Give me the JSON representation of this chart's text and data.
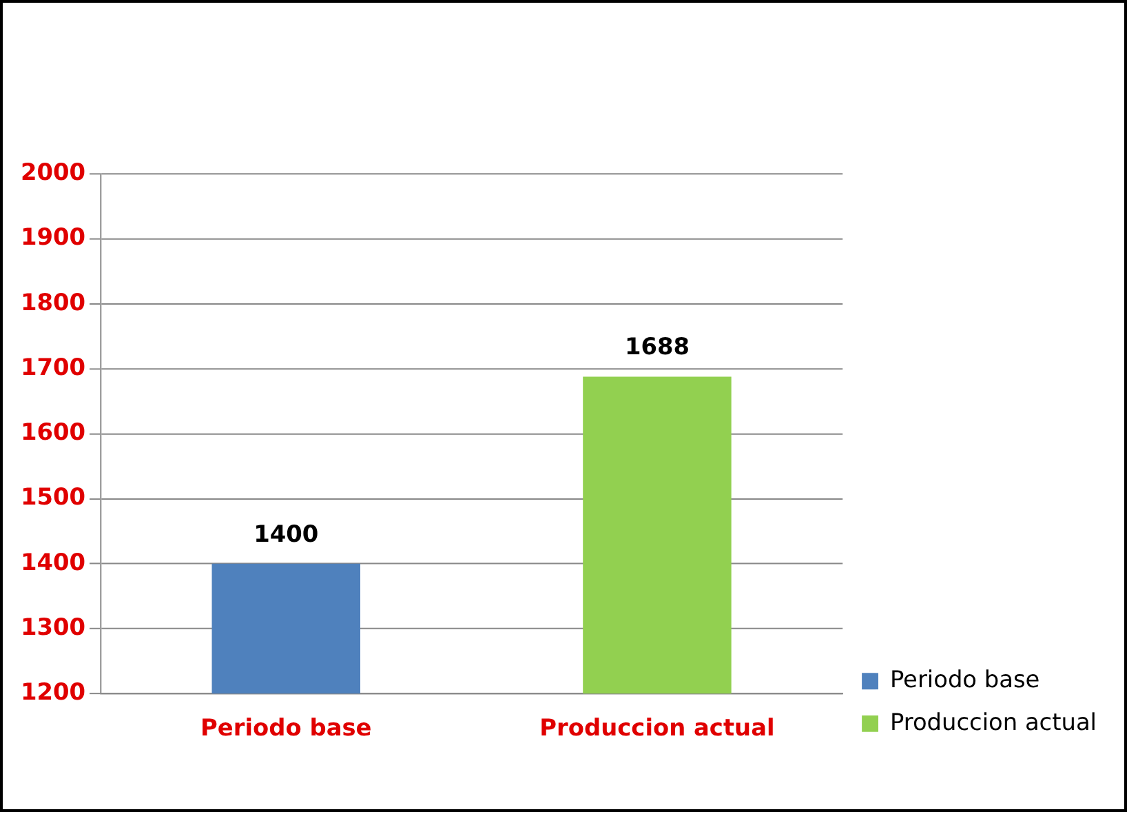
{
  "chart_data": {
    "type": "bar",
    "categories": [
      "Periodo base",
      "Produccion actual"
    ],
    "series": [
      {
        "name": "Periodo base",
        "color": "#4f81bd",
        "values": [
          1400,
          null
        ]
      },
      {
        "name": "Produccion actual",
        "color": "#92d050",
        "values": [
          null,
          1688
        ]
      }
    ],
    "ylim": [
      1200,
      2000
    ],
    "yticks": [
      1200,
      1300,
      1400,
      1500,
      1600,
      1700,
      1800,
      1900,
      2000
    ],
    "grid": "y",
    "legend": "bottom right",
    "data_labels": true
  }
}
